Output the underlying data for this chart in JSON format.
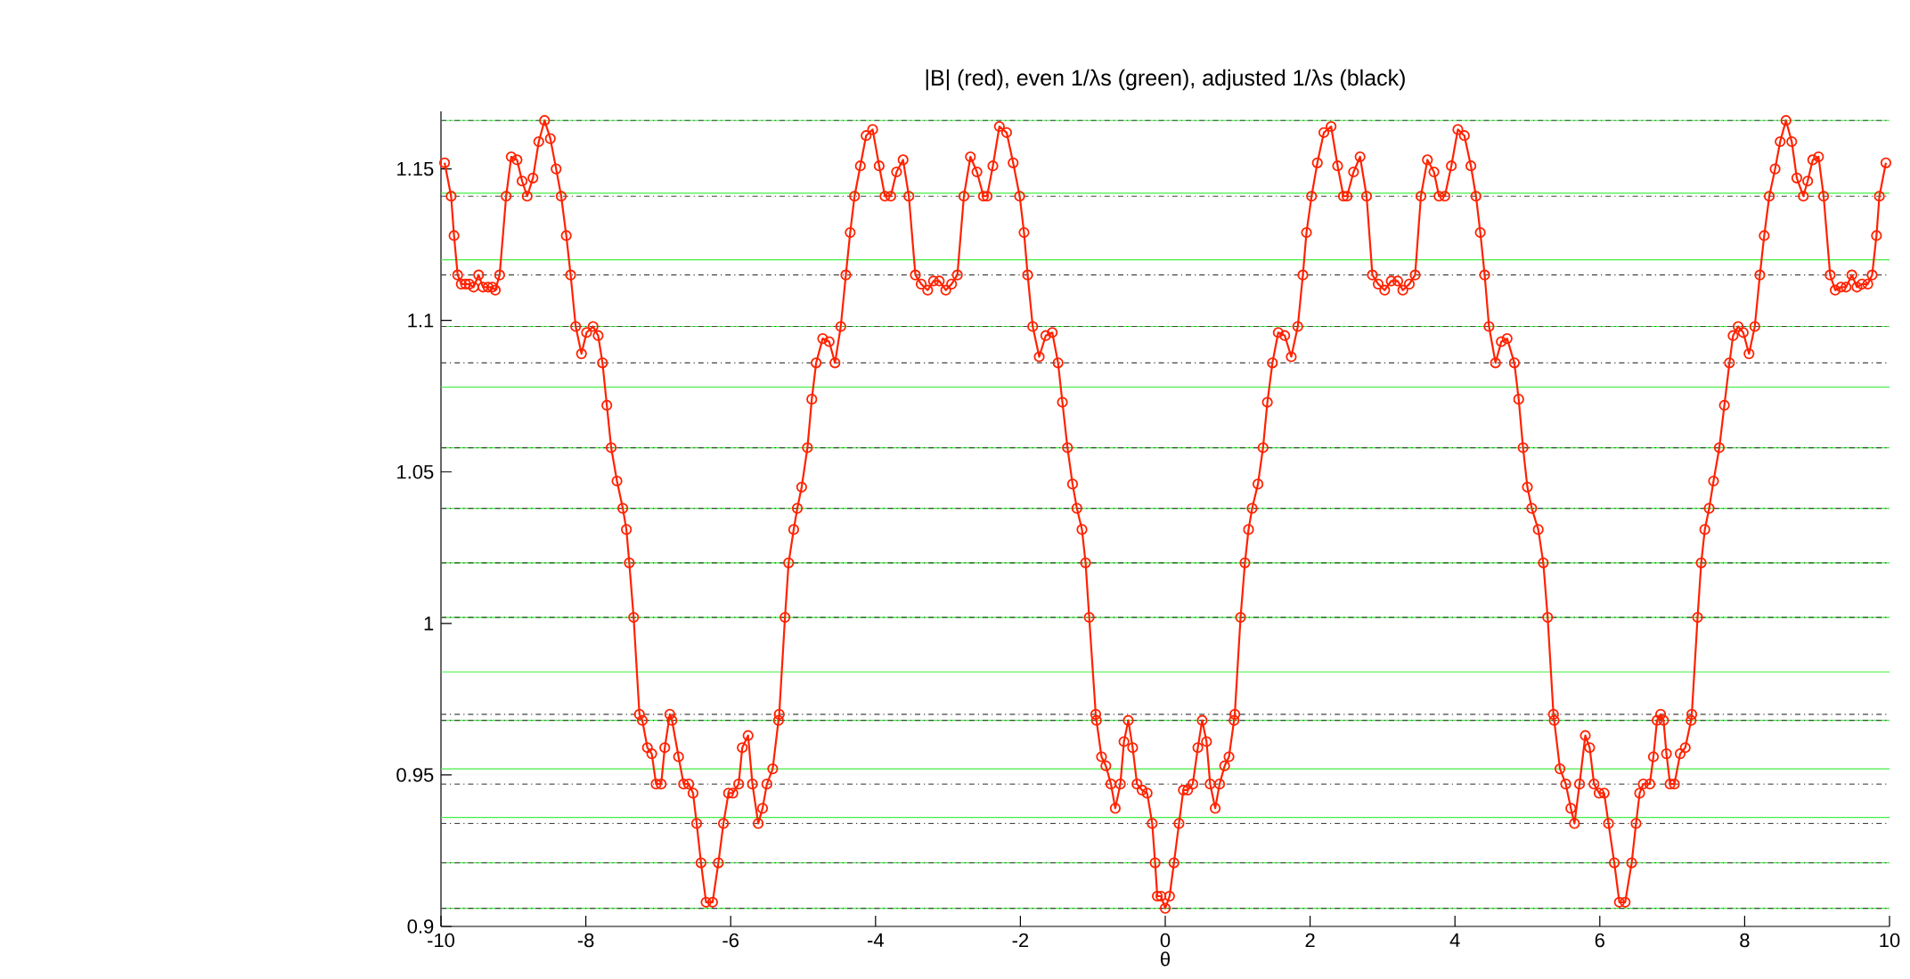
{
  "chart_data": {
    "type": "line",
    "title": "|B| (red), even 1/λs (green), adjusted 1/λs (black)",
    "xlabel": "θ",
    "xlim": [
      -10,
      10
    ],
    "xticks": [
      -10,
      -8,
      -6,
      -4,
      -2,
      0,
      2,
      4,
      6,
      8,
      10
    ],
    "ylim": [
      0.9,
      1.169
    ],
    "yticks": [
      0.9,
      0.95,
      1,
      1.05,
      1.1,
      1.15
    ],
    "grid": false,
    "marker": "circle",
    "line_style": "solid",
    "series": [
      {
        "color": "#ff2200",
        "x": [
          -9.95,
          -9.86,
          -9.82,
          -9.77,
          -9.72,
          -9.66,
          -9.61,
          -9.55,
          -9.48,
          -9.42,
          -9.35,
          -9.29,
          -9.25,
          -9.19,
          -9.1,
          -9.03,
          -8.95,
          -8.88,
          -8.81,
          -8.73,
          -8.65,
          -8.57,
          -8.49,
          -8.41,
          -8.34,
          -8.27,
          -8.21,
          -8.14,
          -8.06,
          -7.99,
          -7.9,
          -7.83,
          -7.77,
          -7.71,
          -7.65,
          -7.57,
          -7.49,
          -7.44,
          -7.4,
          -7.34,
          -7.26,
          -7.22,
          -7.15,
          -7.09,
          -7.03,
          -6.96,
          -6.91,
          -6.84,
          -6.81,
          -6.72,
          -6.65,
          -6.58,
          -6.52,
          -6.47,
          -6.41,
          -6.34,
          -6.25,
          -6.17,
          -6.1,
          -6.03,
          -5.97,
          -5.89,
          -5.84,
          -5.76,
          -5.7,
          -5.62,
          -5.56,
          -5.5,
          -5.42,
          -5.34,
          -5.33,
          -5.25,
          -5.2,
          -5.13,
          -5.08,
          -5.02,
          -4.94,
          -4.88,
          -4.82,
          -4.73,
          -4.64,
          -4.56,
          -4.48,
          -4.41,
          -4.35,
          -4.29,
          -4.21,
          -4.13,
          -4.04,
          -3.95,
          -3.87,
          -3.79,
          -3.71,
          -3.62,
          -3.54,
          -3.45,
          -3.37,
          -3.28,
          -3.2,
          -3.12,
          -3.03,
          -2.95,
          -2.87,
          -2.78,
          -2.69,
          -2.6,
          -2.51,
          -2.46,
          -2.38,
          -2.29,
          -2.19,
          -2.1,
          -2.01,
          -1.95,
          -1.9,
          -1.83,
          -1.74,
          -1.65,
          -1.56,
          -1.48,
          -1.42,
          -1.35,
          -1.28,
          -1.22,
          -1.15,
          -1.1,
          -1.05,
          -0.96,
          -0.95,
          -0.88,
          -0.82,
          -0.75,
          -0.69,
          -0.62,
          -0.57,
          -0.51,
          -0.45,
          -0.39,
          -0.32,
          -0.25,
          -0.18,
          -0.14,
          -0.11,
          -0.06,
          0.0,
          0.06,
          0.12,
          0.19,
          0.25,
          0.31,
          0.38,
          0.45,
          0.51,
          0.57,
          0.62,
          0.69,
          0.75,
          0.82,
          0.88,
          0.95,
          0.96,
          1.04,
          1.1,
          1.15,
          1.2,
          1.28,
          1.35,
          1.41,
          1.48,
          1.56,
          1.65,
          1.74,
          1.83,
          1.9,
          1.95,
          2.02,
          2.1,
          2.19,
          2.29,
          2.38,
          2.46,
          2.51,
          2.6,
          2.69,
          2.78,
          2.86,
          2.94,
          3.03,
          3.12,
          3.21,
          3.28,
          3.37,
          3.45,
          3.53,
          3.62,
          3.71,
          3.78,
          3.86,
          3.95,
          4.04,
          4.13,
          4.22,
          4.29,
          4.35,
          4.41,
          4.47,
          4.56,
          4.64,
          4.72,
          4.82,
          4.88,
          4.94,
          5.0,
          5.06,
          5.15,
          5.22,
          5.28,
          5.36,
          5.37,
          5.45,
          5.53,
          5.6,
          5.65,
          5.72,
          5.8,
          5.86,
          5.92,
          5.99,
          6.06,
          6.12,
          6.2,
          6.27,
          6.35,
          6.44,
          6.5,
          6.55,
          6.6,
          6.69,
          6.74,
          6.79,
          6.84,
          6.88,
          6.92,
          6.97,
          7.03,
          7.11,
          7.18,
          7.26,
          7.27,
          7.35,
          7.4,
          7.45,
          7.51,
          7.57,
          7.65,
          7.72,
          7.79,
          7.84,
          7.91,
          7.98,
          8.06,
          8.14,
          8.21,
          8.27,
          8.34,
          8.42,
          8.49,
          8.57,
          8.65,
          8.72,
          8.81,
          8.87,
          8.94,
          9.02,
          9.09,
          9.18,
          9.25,
          9.33,
          9.4,
          9.48,
          9.55,
          9.62,
          9.7,
          9.76,
          9.82,
          9.86,
          9.95
        ],
        "values": [
          1.152,
          1.141,
          1.128,
          1.115,
          1.112,
          1.112,
          1.112,
          1.111,
          1.115,
          1.111,
          1.111,
          1.111,
          1.11,
          1.115,
          1.141,
          1.154,
          1.153,
          1.146,
          1.141,
          1.147,
          1.159,
          1.166,
          1.16,
          1.15,
          1.141,
          1.128,
          1.115,
          1.098,
          1.089,
          1.096,
          1.098,
          1.095,
          1.086,
          1.072,
          1.058,
          1.047,
          1.038,
          1.031,
          1.02,
          1.002,
          0.97,
          0.968,
          0.959,
          0.957,
          0.947,
          0.947,
          0.959,
          0.97,
          0.968,
          0.956,
          0.947,
          0.947,
          0.944,
          0.934,
          0.921,
          0.908,
          0.908,
          0.921,
          0.934,
          0.944,
          0.944,
          0.947,
          0.959,
          0.963,
          0.947,
          0.934,
          0.939,
          0.947,
          0.952,
          0.968,
          0.97,
          1.002,
          1.02,
          1.031,
          1.038,
          1.045,
          1.058,
          1.074,
          1.086,
          1.094,
          1.093,
          1.086,
          1.098,
          1.115,
          1.129,
          1.141,
          1.151,
          1.161,
          1.163,
          1.151,
          1.141,
          1.141,
          1.149,
          1.153,
          1.141,
          1.115,
          1.112,
          1.11,
          1.113,
          1.113,
          1.11,
          1.112,
          1.115,
          1.141,
          1.154,
          1.149,
          1.141,
          1.141,
          1.151,
          1.164,
          1.162,
          1.152,
          1.141,
          1.129,
          1.115,
          1.098,
          1.088,
          1.095,
          1.096,
          1.086,
          1.073,
          1.058,
          1.046,
          1.038,
          1.031,
          1.02,
          1.002,
          0.97,
          0.968,
          0.956,
          0.953,
          0.947,
          0.939,
          0.947,
          0.961,
          0.968,
          0.959,
          0.947,
          0.945,
          0.944,
          0.934,
          0.921,
          0.91,
          0.91,
          0.906,
          0.91,
          0.921,
          0.934,
          0.945,
          0.945,
          0.947,
          0.959,
          0.968,
          0.961,
          0.947,
          0.939,
          0.947,
          0.953,
          0.956,
          0.968,
          0.97,
          1.002,
          1.02,
          1.031,
          1.038,
          1.046,
          1.058,
          1.073,
          1.086,
          1.096,
          1.095,
          1.088,
          1.098,
          1.115,
          1.129,
          1.141,
          1.152,
          1.162,
          1.164,
          1.151,
          1.141,
          1.141,
          1.149,
          1.154,
          1.141,
          1.115,
          1.112,
          1.11,
          1.113,
          1.113,
          1.11,
          1.112,
          1.115,
          1.141,
          1.153,
          1.149,
          1.141,
          1.141,
          1.151,
          1.163,
          1.161,
          1.151,
          1.141,
          1.129,
          1.115,
          1.098,
          1.086,
          1.093,
          1.094,
          1.086,
          1.074,
          1.058,
          1.045,
          1.038,
          1.031,
          1.02,
          1.002,
          0.97,
          0.968,
          0.952,
          0.947,
          0.939,
          0.934,
          0.947,
          0.963,
          0.959,
          0.947,
          0.944,
          0.944,
          0.934,
          0.921,
          0.908,
          0.908,
          0.921,
          0.934,
          0.944,
          0.947,
          0.947,
          0.956,
          0.968,
          0.97,
          0.968,
          0.957,
          0.947,
          0.947,
          0.957,
          0.959,
          0.968,
          0.97,
          1.002,
          1.02,
          1.031,
          1.038,
          1.047,
          1.058,
          1.072,
          1.086,
          1.095,
          1.098,
          1.096,
          1.089,
          1.098,
          1.115,
          1.128,
          1.141,
          1.15,
          1.159,
          1.166,
          1.159,
          1.147,
          1.141,
          1.146,
          1.153,
          1.154,
          1.141,
          1.115,
          1.11,
          1.111,
          1.111,
          1.115,
          1.111,
          1.112,
          1.112,
          1.115,
          1.128,
          1.141,
          1.152
        ]
      }
    ],
    "ref_lines": [
      {
        "axis": "y",
        "value": 1.166,
        "color": "#44ee44",
        "line_style": "solid"
      },
      {
        "axis": "y",
        "value": 1.142,
        "color": "#44ee44",
        "line_style": "solid"
      },
      {
        "axis": "y",
        "value": 1.12,
        "color": "#44ee44",
        "line_style": "solid"
      },
      {
        "axis": "y",
        "value": 1.098,
        "color": "#44ee44",
        "line_style": "solid"
      },
      {
        "axis": "y",
        "value": 1.078,
        "color": "#44ee44",
        "line_style": "solid"
      },
      {
        "axis": "y",
        "value": 1.058,
        "color": "#44ee44",
        "line_style": "solid"
      },
      {
        "axis": "y",
        "value": 1.038,
        "color": "#44ee44",
        "line_style": "solid"
      },
      {
        "axis": "y",
        "value": 1.02,
        "color": "#44ee44",
        "line_style": "solid"
      },
      {
        "axis": "y",
        "value": 1.002,
        "color": "#44ee44",
        "line_style": "solid"
      },
      {
        "axis": "y",
        "value": 0.984,
        "color": "#44ee44",
        "line_style": "solid"
      },
      {
        "axis": "y",
        "value": 0.968,
        "color": "#44ee44",
        "line_style": "solid"
      },
      {
        "axis": "y",
        "value": 0.952,
        "color": "#44ee44",
        "line_style": "solid"
      },
      {
        "axis": "y",
        "value": 0.936,
        "color": "#44ee44",
        "line_style": "solid"
      },
      {
        "axis": "y",
        "value": 0.921,
        "color": "#44ee44",
        "line_style": "solid"
      },
      {
        "axis": "y",
        "value": 0.906,
        "color": "#44ee44",
        "line_style": "solid"
      },
      {
        "axis": "y",
        "value": 1.166,
        "color": "#444444",
        "line_style": "dashdot"
      },
      {
        "axis": "y",
        "value": 1.141,
        "color": "#444444",
        "line_style": "dashdot"
      },
      {
        "axis": "y",
        "value": 1.115,
        "color": "#444444",
        "line_style": "dashdot"
      },
      {
        "axis": "y",
        "value": 1.098,
        "color": "#444444",
        "line_style": "dashdot"
      },
      {
        "axis": "y",
        "value": 1.086,
        "color": "#444444",
        "line_style": "dashdot"
      },
      {
        "axis": "y",
        "value": 1.058,
        "color": "#444444",
        "line_style": "dashdot"
      },
      {
        "axis": "y",
        "value": 1.038,
        "color": "#444444",
        "line_style": "dashdot"
      },
      {
        "axis": "y",
        "value": 1.02,
        "color": "#444444",
        "line_style": "dashdot"
      },
      {
        "axis": "y",
        "value": 1.002,
        "color": "#444444",
        "line_style": "dashdot"
      },
      {
        "axis": "y",
        "value": 0.97,
        "color": "#444444",
        "line_style": "dashdot"
      },
      {
        "axis": "y",
        "value": 0.968,
        "color": "#444444",
        "line_style": "dashdot"
      },
      {
        "axis": "y",
        "value": 0.947,
        "color": "#444444",
        "line_style": "dashdot"
      },
      {
        "axis": "y",
        "value": 0.934,
        "color": "#444444",
        "line_style": "dashdot"
      },
      {
        "axis": "y",
        "value": 0.921,
        "color": "#444444",
        "line_style": "dashdot"
      },
      {
        "axis": "y",
        "value": 0.906,
        "color": "#444444",
        "line_style": "dashdot"
      }
    ]
  }
}
